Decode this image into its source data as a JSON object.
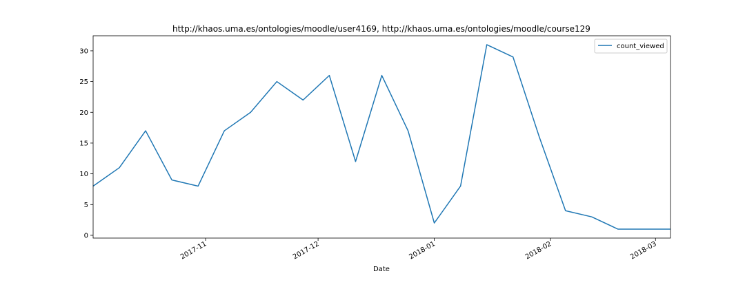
{
  "chart_data": {
    "type": "line",
    "title": "http://khaos.uma.es/ontologies/moodle/user4169, http://khaos.uma.es/ontologies/moodle/course129",
    "xlabel": "Date",
    "ylabel": "",
    "x": [
      "2017-10-02",
      "2017-10-09",
      "2017-10-16",
      "2017-10-23",
      "2017-10-30",
      "2017-11-06",
      "2017-11-13",
      "2017-11-20",
      "2017-11-27",
      "2017-12-04",
      "2017-12-11",
      "2017-12-18",
      "2017-12-25",
      "2018-01-01",
      "2018-01-08",
      "2018-01-15",
      "2018-01-22",
      "2018-01-29",
      "2018-02-05",
      "2018-02-12",
      "2018-02-19",
      "2018-02-26",
      "2018-03-05"
    ],
    "series": [
      {
        "name": "count_viewed",
        "color": "#1f77b4",
        "values": [
          8,
          11,
          17,
          9,
          8,
          17,
          20,
          25,
          22,
          26,
          12,
          26,
          17,
          2,
          8,
          31,
          29,
          16,
          4,
          3,
          1,
          1,
          1
        ]
      }
    ],
    "xlim": [
      "2017-10-02",
      "2018-03-05"
    ],
    "ylim": [
      -0.45,
      32.45
    ],
    "yticks": [
      0,
      5,
      10,
      15,
      20,
      25,
      30
    ],
    "xticks": [
      {
        "date": "2017-11-01",
        "label": "2017-11"
      },
      {
        "date": "2017-12-01",
        "label": "2017-12"
      },
      {
        "date": "2018-01-01",
        "label": "2018-01"
      },
      {
        "date": "2018-02-01",
        "label": "2018-02"
      },
      {
        "date": "2018-03-01",
        "label": "2018-03"
      }
    ],
    "legend": "top-right",
    "grid": false
  }
}
